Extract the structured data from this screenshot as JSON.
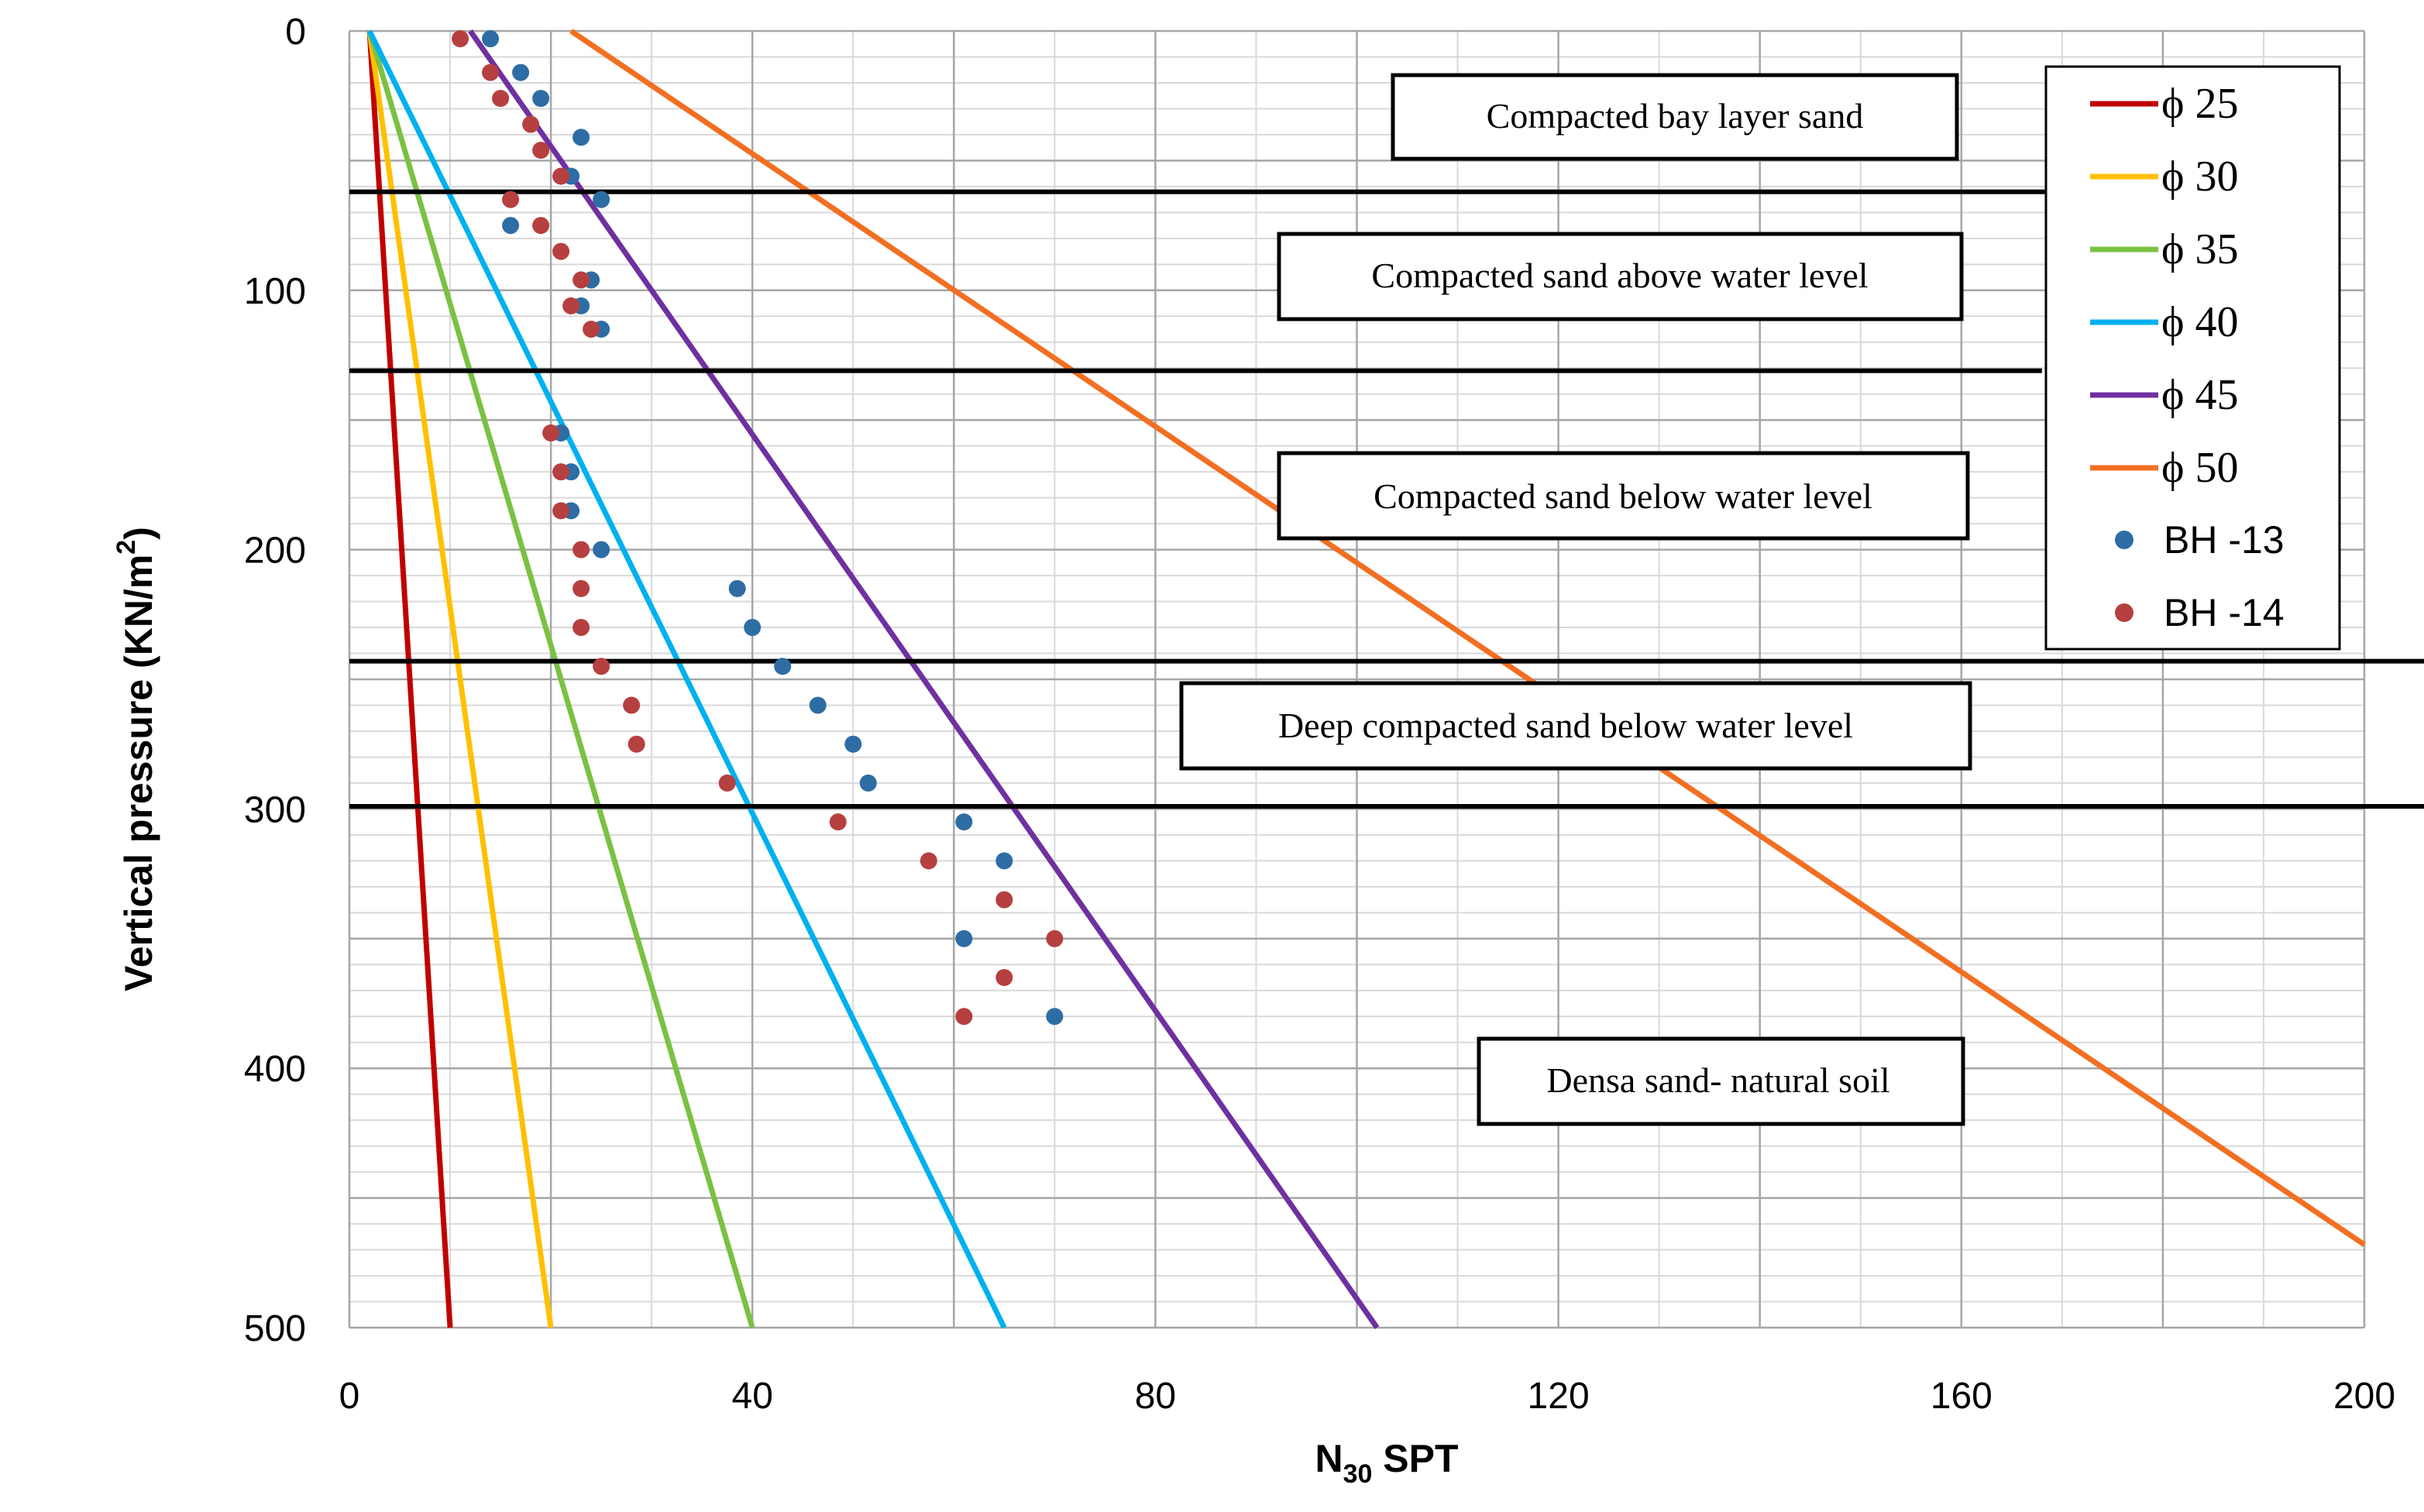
{
  "chart_data": {
    "type": "line",
    "xlabel": "N",
    "xlabel_sub": "30",
    "xlabel_suffix": " SPT",
    "ylabel": "Vertical pressure  (KN/m",
    "ylabel_sup": "2",
    "ylabel_close": ")",
    "xlim": [
      0,
      200
    ],
    "ylim": [
      0,
      500
    ],
    "y_inverted": true,
    "x_ticks": [
      "0",
      "40",
      "80",
      "120",
      "160",
      "200"
    ],
    "y_ticks": [
      "0",
      "100",
      "200",
      "300",
      "400",
      "500"
    ],
    "grid": true,
    "legend_position": "top-right",
    "lines": [
      {
        "name": "ϕ 25",
        "color": "#c00000",
        "points": [
          [
            2,
            0
          ],
          [
            10,
            500
          ]
        ]
      },
      {
        "name": "ϕ 30",
        "color": "#ffc000",
        "points": [
          [
            2,
            0
          ],
          [
            20,
            500
          ]
        ]
      },
      {
        "name": "ϕ 35",
        "color": "#7ac143",
        "points": [
          [
            2,
            0
          ],
          [
            40,
            500
          ]
        ]
      },
      {
        "name": "ϕ 40",
        "color": "#00b0f0",
        "points": [
          [
            2,
            0
          ],
          [
            65,
            500
          ]
        ]
      },
      {
        "name": "ϕ 45",
        "color": "#7030a0",
        "points": [
          [
            12,
            0
          ],
          [
            102,
            500
          ]
        ]
      },
      {
        "name": "ϕ 50",
        "color": "#f26f22",
        "points": [
          [
            22,
            0
          ],
          [
            200,
            468
          ]
        ]
      }
    ],
    "scatter": [
      {
        "name": "BH -13",
        "color": "#2e6da4",
        "points": [
          [
            14,
            3
          ],
          [
            17,
            16
          ],
          [
            19,
            26
          ],
          [
            23,
            41
          ],
          [
            22,
            56
          ],
          [
            25,
            65
          ],
          [
            16,
            75
          ],
          [
            24,
            96
          ],
          [
            23,
            106
          ],
          [
            25,
            115
          ],
          [
            21,
            155
          ],
          [
            22,
            170
          ],
          [
            22,
            185
          ],
          [
            25,
            200
          ],
          [
            38.5,
            215
          ],
          [
            40,
            230
          ],
          [
            43,
            245
          ],
          [
            46.5,
            260
          ],
          [
            50,
            275
          ],
          [
            51.5,
            290
          ],
          [
            61,
            305
          ],
          [
            65,
            320
          ],
          [
            61,
            350
          ],
          [
            70,
            380
          ]
        ]
      },
      {
        "name": "BH -14",
        "color": "#b5403f",
        "points": [
          [
            11,
            3
          ],
          [
            14,
            16
          ],
          [
            15,
            26
          ],
          [
            18,
            36
          ],
          [
            19,
            46
          ],
          [
            21,
            56
          ],
          [
            16,
            65
          ],
          [
            19,
            75
          ],
          [
            21,
            85
          ],
          [
            23,
            96
          ],
          [
            22,
            106
          ],
          [
            24,
            115
          ],
          [
            20,
            155
          ],
          [
            21,
            170
          ],
          [
            21,
            185
          ],
          [
            23,
            200
          ],
          [
            23,
            215
          ],
          [
            23,
            230
          ],
          [
            25,
            245
          ],
          [
            28,
            260
          ],
          [
            28.5,
            275
          ],
          [
            37.5,
            290
          ],
          [
            48.5,
            305
          ],
          [
            57.5,
            320
          ],
          [
            65,
            335
          ],
          [
            70,
            350
          ],
          [
            65,
            365
          ],
          [
            61,
            380
          ]
        ]
      }
    ],
    "zones": [
      {
        "label": "Compacted  bay layer sand"
      },
      {
        "label": "Compacted  sand above water level"
      },
      {
        "label": "Compacted  sand below water level"
      },
      {
        "label": "Deep compacted  sand below water level"
      },
      {
        "label": "Densa sand- natural soil"
      }
    ],
    "boundaries": [
      {
        "y": 62,
        "x_end": 170
      },
      {
        "y": 131,
        "x_end": 168
      },
      {
        "y": 243,
        "x_end": 210
      },
      {
        "y": 299,
        "x_end": 210
      }
    ]
  },
  "colors": {
    "background": "#ffffff",
    "grid_major": "#a6a6a6",
    "grid_minor": "#d9d9d9",
    "boundary": "#000000",
    "text": "#000000"
  }
}
